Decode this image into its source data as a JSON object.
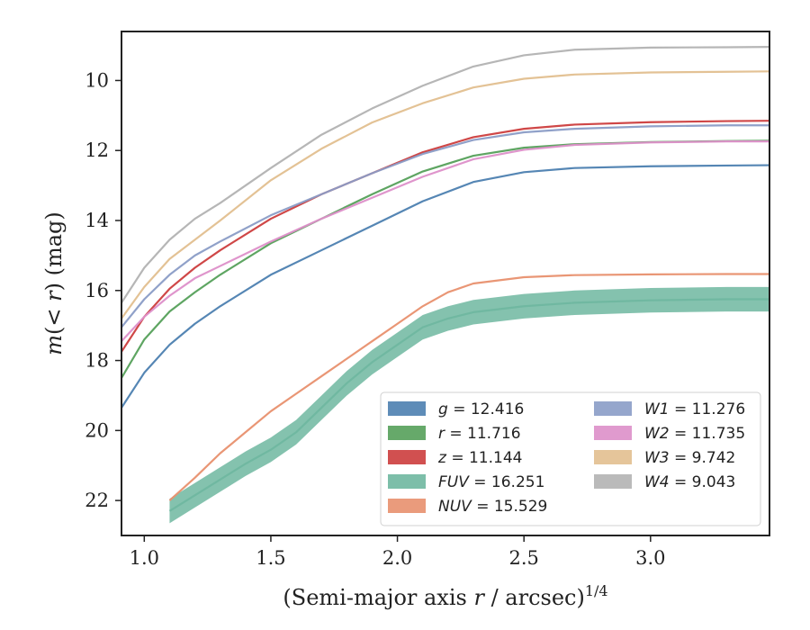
{
  "chart_data": {
    "type": "line",
    "title": "",
    "xlabel": "(Semi-major axis r / arcsec)",
    "xlabel_parts": {
      "pre": "(Semi-major axis ",
      "var": "r",
      "post": " / arcsec)",
      "sup": "1/4"
    },
    "ylabel": "m(<r) (mag)",
    "ylabel_parts": {
      "m": "m",
      "open": "(",
      "lt": "< ",
      "r": "r",
      "close": ")",
      "unit": " (mag)"
    },
    "xlim": [
      0.91,
      3.47
    ],
    "ylim": [
      23.0,
      8.6
    ],
    "y_inverted": true,
    "xticks": [
      1.0,
      1.5,
      2.0,
      2.5,
      3.0
    ],
    "xtick_labels": [
      "1.0",
      "1.5",
      "2.0",
      "2.5",
      "3.0"
    ],
    "yticks": [
      10,
      12,
      14,
      16,
      18,
      20,
      22
    ],
    "ytick_labels": [
      "10",
      "12",
      "14",
      "16",
      "18",
      "20",
      "22"
    ],
    "grid": false,
    "legend_placement": "lower-right",
    "series": [
      {
        "name": "g",
        "label_value": "= 12.416",
        "color": "#4c7fb0",
        "x": [
          0.91,
          1.0,
          1.1,
          1.2,
          1.3,
          1.5,
          1.7,
          1.9,
          2.1,
          2.3,
          2.5,
          2.7,
          3.0,
          3.3,
          3.47
        ],
        "y": [
          19.35,
          18.35,
          17.55,
          16.95,
          16.45,
          15.55,
          14.85,
          14.15,
          13.45,
          12.9,
          12.62,
          12.5,
          12.45,
          12.43,
          12.42
        ]
      },
      {
        "name": "r",
        "label_value": "= 11.716",
        "color": "#55a05a",
        "x": [
          0.91,
          1.0,
          1.1,
          1.2,
          1.3,
          1.5,
          1.7,
          1.9,
          2.1,
          2.3,
          2.5,
          2.7,
          3.0,
          3.3,
          3.47
        ],
        "y": [
          18.5,
          17.4,
          16.6,
          16.05,
          15.55,
          14.65,
          13.95,
          13.25,
          12.6,
          12.15,
          11.92,
          11.82,
          11.76,
          11.73,
          11.72
        ]
      },
      {
        "name": "z",
        "label_value": "= 11.144",
        "color": "#cc3d3d",
        "x": [
          0.91,
          1.0,
          1.1,
          1.2,
          1.3,
          1.5,
          1.7,
          1.9,
          2.1,
          2.3,
          2.5,
          2.7,
          3.0,
          3.3,
          3.47
        ],
        "y": [
          17.75,
          16.75,
          15.95,
          15.35,
          14.85,
          13.95,
          13.25,
          12.65,
          12.05,
          11.62,
          11.38,
          11.26,
          11.19,
          11.16,
          11.15
        ]
      },
      {
        "name": "FUV",
        "label_value": "= 16.251",
        "color": "#6fb7a0",
        "band_halfwidth": 0.35,
        "x": [
          1.1,
          1.2,
          1.3,
          1.4,
          1.5,
          1.6,
          1.7,
          1.8,
          1.9,
          2.0,
          2.1,
          2.2,
          2.3,
          2.5,
          2.7,
          3.0,
          3.3,
          3.47
        ],
        "y": [
          22.3,
          21.85,
          21.4,
          20.95,
          20.55,
          20.05,
          19.35,
          18.65,
          18.05,
          17.55,
          17.05,
          16.8,
          16.62,
          16.45,
          16.35,
          16.28,
          16.25,
          16.25
        ]
      },
      {
        "name": "NUV",
        "label_value": "= 15.529",
        "color": "#e8906e",
        "x": [
          1.1,
          1.2,
          1.3,
          1.4,
          1.5,
          1.6,
          1.7,
          1.8,
          1.9,
          2.0,
          2.1,
          2.2,
          2.3,
          2.5,
          2.7,
          3.0,
          3.3,
          3.47
        ],
        "y": [
          22.0,
          21.35,
          20.65,
          20.05,
          19.45,
          18.95,
          18.45,
          17.95,
          17.45,
          16.95,
          16.45,
          16.05,
          15.8,
          15.62,
          15.56,
          15.54,
          15.53,
          15.53
        ]
      },
      {
        "name": "W1",
        "label_value": "= 11.276",
        "color": "#8a9cc6",
        "x": [
          0.91,
          1.0,
          1.1,
          1.2,
          1.3,
          1.5,
          1.7,
          1.9,
          2.1,
          2.3,
          2.5,
          2.7,
          3.0,
          3.3,
          3.47
        ],
        "y": [
          17.05,
          16.25,
          15.55,
          15.0,
          14.6,
          13.85,
          13.25,
          12.65,
          12.1,
          11.7,
          11.48,
          11.38,
          11.31,
          11.28,
          11.28
        ]
      },
      {
        "name": "W2",
        "label_value": "= 11.735",
        "color": "#dd8fc9",
        "x": [
          0.91,
          1.0,
          1.1,
          1.2,
          1.3,
          1.5,
          1.7,
          1.9,
          2.1,
          2.3,
          2.5,
          2.7,
          3.0,
          3.3,
          3.47
        ],
        "y": [
          17.45,
          16.75,
          16.15,
          15.65,
          15.3,
          14.6,
          13.95,
          13.35,
          12.75,
          12.25,
          11.98,
          11.84,
          11.77,
          11.74,
          11.74
        ]
      },
      {
        "name": "W3",
        "label_value": "= 9.742",
        "color": "#e2bf8f",
        "x": [
          0.91,
          1.0,
          1.1,
          1.2,
          1.3,
          1.5,
          1.7,
          1.9,
          2.1,
          2.3,
          2.5,
          2.7,
          3.0,
          3.3,
          3.47
        ],
        "y": [
          16.8,
          15.9,
          15.1,
          14.55,
          14.0,
          12.85,
          11.95,
          11.2,
          10.65,
          10.2,
          9.95,
          9.83,
          9.77,
          9.75,
          9.74
        ]
      },
      {
        "name": "W4",
        "label_value": "= 9.043",
        "color": "#b2b2b2",
        "x": [
          0.91,
          1.0,
          1.1,
          1.2,
          1.3,
          1.5,
          1.7,
          1.9,
          2.1,
          2.3,
          2.5,
          2.7,
          3.0,
          3.3,
          3.47
        ],
        "y": [
          16.35,
          15.35,
          14.55,
          13.95,
          13.5,
          12.5,
          11.55,
          10.8,
          10.15,
          9.6,
          9.28,
          9.12,
          9.06,
          9.05,
          9.04
        ]
      }
    ]
  }
}
